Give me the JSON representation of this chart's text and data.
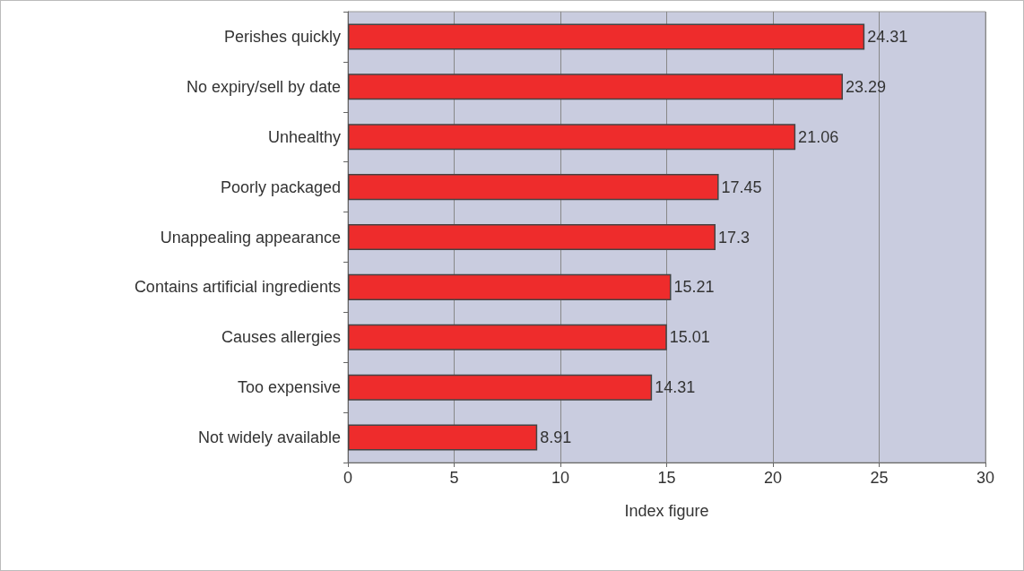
{
  "chart_data": {
    "type": "bar",
    "orientation": "horizontal",
    "xlabel": "Index figure",
    "categories": [
      "Perishes quickly",
      "No expiry/sell by date",
      "Unhealthy",
      "Poorly packaged",
      "Unappealing appearance",
      "Contains artificial ingredients",
      "Causes allergies",
      "Too expensive",
      "Not widely available"
    ],
    "values": [
      24.31,
      23.29,
      21.06,
      17.45,
      17.3,
      15.21,
      15.01,
      14.31,
      8.91
    ],
    "color": "#ee2c2c",
    "xlim": [
      0,
      30
    ],
    "xticks": [
      0,
      5,
      10,
      15,
      20,
      25,
      30
    ],
    "grid": "x",
    "data_labels": true
  }
}
